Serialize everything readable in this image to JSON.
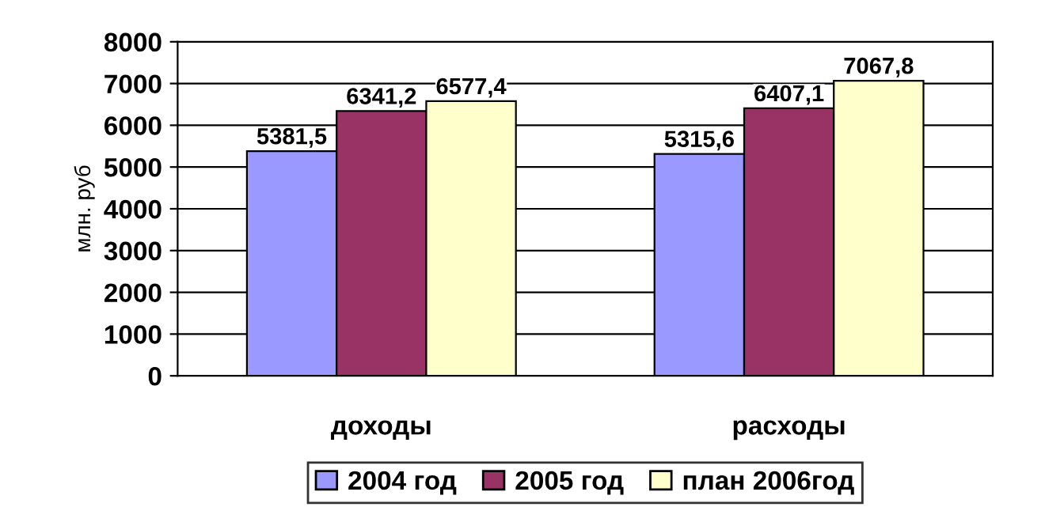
{
  "chart_data": {
    "type": "bar",
    "ylabel": "млн. руб",
    "categories": [
      "доходы",
      "расходы"
    ],
    "series": [
      {
        "name": "2004 год",
        "color": "#9999ff",
        "values": [
          5381.5,
          5315.6
        ],
        "value_labels": [
          "5381,5",
          "5315,6"
        ]
      },
      {
        "name": "2005 год",
        "color": "#993366",
        "values": [
          6341.2,
          6407.1
        ],
        "value_labels": [
          "6341,2",
          "6407,1"
        ]
      },
      {
        "name": "план 2006год",
        "color": "#ffffcc",
        "values": [
          6577.4,
          7067.8
        ],
        "value_labels": [
          "6577,4",
          "7067,8"
        ]
      }
    ],
    "ylim": [
      0,
      8000
    ],
    "yticks": [
      0,
      1000,
      2000,
      3000,
      4000,
      5000,
      6000,
      7000,
      8000
    ],
    "grid": "y",
    "legend": "bottom"
  }
}
